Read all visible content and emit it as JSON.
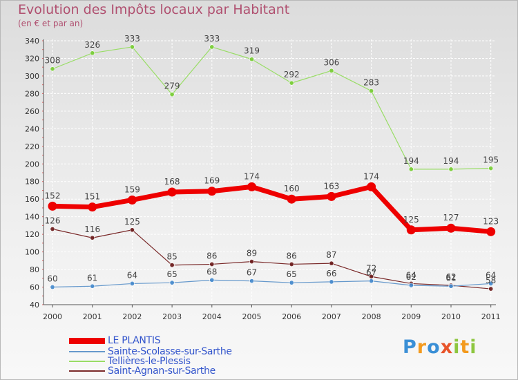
{
  "title": "Evolution des Impôts locaux par Habitant",
  "subtitle": "(en € et par an)",
  "logo": {
    "text": "Proxiti",
    "letters": [
      "P",
      "r",
      "o",
      "x",
      "i",
      "t",
      "i"
    ],
    "colors": [
      "#3a8fd6",
      "#f39a1e",
      "#3a8fd6",
      "#e8542a",
      "#8dc63f",
      "#f39a1e",
      "#8dc63f"
    ]
  },
  "chart_data": {
    "type": "line",
    "title": "Evolution des Impôts locaux par Habitant",
    "subtitle": "(en € et par an)",
    "xlabel": "",
    "ylabel": "",
    "ylim": [
      40,
      340
    ],
    "yticks": [
      40,
      60,
      80,
      100,
      120,
      140,
      160,
      180,
      200,
      220,
      240,
      260,
      280,
      300,
      320,
      340
    ],
    "grid": true,
    "legend_position": "bottom-left",
    "x": [
      "2000",
      "2001",
      "2002",
      "2003",
      "2004",
      "2005",
      "2006",
      "2007",
      "2008",
      "2009",
      "2010",
      "2011"
    ],
    "series": [
      {
        "name": "Tellières-le-Plessis",
        "color": "#99dd66",
        "marker_color": "#77cc33",
        "values": [
          308,
          326,
          333,
          279,
          333,
          319,
          292,
          306,
          283,
          194,
          194,
          195
        ],
        "labels": [
          "308",
          "326",
          "333",
          "279",
          "333",
          "319",
          "292",
          "306",
          "283",
          "194",
          "194",
          "195"
        ]
      },
      {
        "name": "LE PLANTIS",
        "color": "#ee0000",
        "marker_color": "#ee0000",
        "values": [
          152,
          151,
          159,
          168,
          169,
          174,
          160,
          163,
          174,
          125,
          127,
          123
        ],
        "labels": [
          "152",
          "151",
          "159",
          "168",
          "169",
          "174",
          "160",
          "163",
          "174",
          "125",
          "127",
          "123"
        ]
      },
      {
        "name": "Saint-Agnan-sur-Sarthe",
        "color": "#7a2a2a",
        "marker_color": "#6a1a1a",
        "values": [
          126,
          116,
          125,
          85,
          86,
          89,
          86,
          87,
          72,
          64,
          62,
          58
        ],
        "labels": [
          "126",
          "116",
          "125",
          "85",
          "86",
          "89",
          "86",
          "87",
          "72",
          "64",
          "62",
          "58"
        ]
      },
      {
        "name": "Sainte-Scolasse-sur-Sarthe",
        "color": "#6699cc",
        "marker_color": "#4488cc",
        "values": [
          60,
          61,
          64,
          65,
          68,
          67,
          65,
          66,
          67,
          62,
          61,
          64
        ],
        "labels": [
          "60",
          "61",
          "64",
          "65",
          "68",
          "67",
          "65",
          "66",
          "67",
          "62",
          "61",
          "64"
        ]
      }
    ],
    "legend": [
      {
        "name": "LE PLANTIS",
        "color": "#ee0000",
        "weight": "thick"
      },
      {
        "name": "Sainte-Scolasse-sur-Sarthe",
        "color": "#6699cc",
        "weight": "thin"
      },
      {
        "name": "Tellières-le-Plessis",
        "color": "#99dd66",
        "weight": "thin"
      },
      {
        "name": "Saint-Agnan-sur-Sarthe",
        "color": "#7a2a2a",
        "weight": "thin"
      }
    ]
  }
}
